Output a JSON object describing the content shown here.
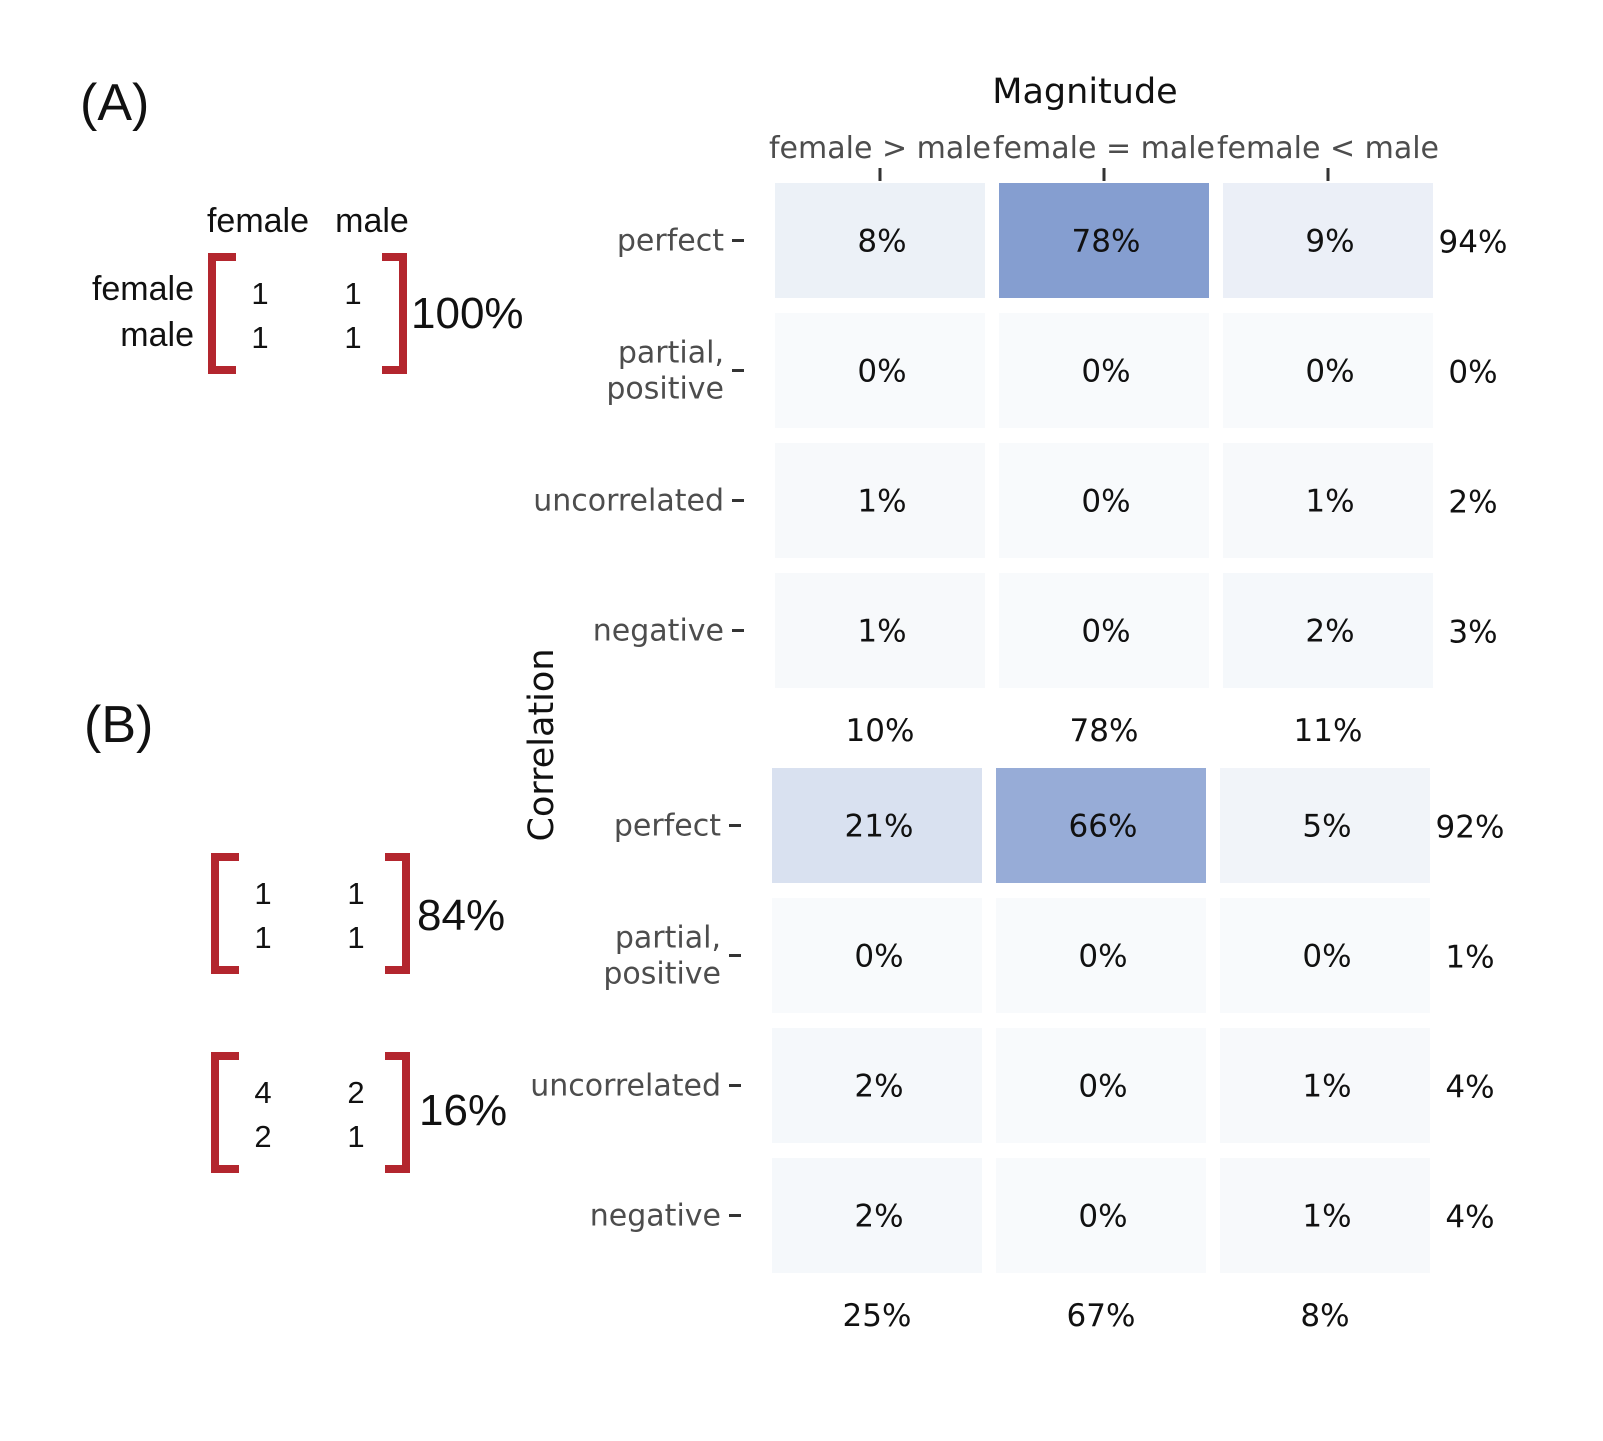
{
  "panel_a_label": "(A)",
  "panel_b_label": "(B)",
  "matrix_headers": {
    "col1": "female",
    "col2": "male",
    "row1": "female",
    "row2": "male"
  },
  "matrices": [
    {
      "values": [
        [
          "1",
          "1"
        ],
        [
          "1",
          "1"
        ]
      ],
      "percent": "100%"
    },
    {
      "values": [
        [
          "1",
          "1"
        ],
        [
          "1",
          "1"
        ]
      ],
      "percent": "84%"
    },
    {
      "values": [
        [
          "4",
          "2"
        ],
        [
          "2",
          "1"
        ]
      ],
      "percent": "16%"
    }
  ],
  "chart_data": {
    "type": "heatmap",
    "x_title": "Magnitude",
    "y_title": "Correlation",
    "columns": [
      "female > male",
      "female = male",
      "female < male"
    ],
    "rows": [
      "perfect",
      "partial, positive",
      "uncorrelated",
      "negative"
    ],
    "row_label_lines": [
      [
        "perfect"
      ],
      [
        "partial,",
        "positive"
      ],
      [
        "uncorrelated"
      ],
      [
        "negative"
      ]
    ],
    "color_low": "#f8fafc",
    "color_high": "#859ed0",
    "panels": [
      {
        "name": "A",
        "values": [
          [
            8,
            78,
            9
          ],
          [
            0,
            0,
            0
          ],
          [
            1,
            0,
            1
          ],
          [
            1,
            0,
            2
          ]
        ],
        "labels": [
          [
            "8%",
            "78%",
            "9%"
          ],
          [
            "0%",
            "0%",
            "0%"
          ],
          [
            "1%",
            "0%",
            "1%"
          ],
          [
            "1%",
            "0%",
            "2%"
          ]
        ],
        "row_totals": [
          "94%",
          "0%",
          "2%",
          "3%"
        ],
        "col_totals": [
          "10%",
          "78%",
          "11%"
        ]
      },
      {
        "name": "B",
        "values": [
          [
            21,
            66,
            5
          ],
          [
            0,
            0,
            0
          ],
          [
            2,
            0,
            1
          ],
          [
            2,
            0,
            1
          ]
        ],
        "labels": [
          [
            "21%",
            "66%",
            "5%"
          ],
          [
            "0%",
            "0%",
            "0%"
          ],
          [
            "2%",
            "0%",
            "1%"
          ],
          [
            "2%",
            "0%",
            "1%"
          ]
        ],
        "row_totals": [
          "92%",
          "1%",
          "4%",
          "4%"
        ],
        "col_totals": [
          "25%",
          "67%",
          "8%"
        ]
      }
    ]
  }
}
